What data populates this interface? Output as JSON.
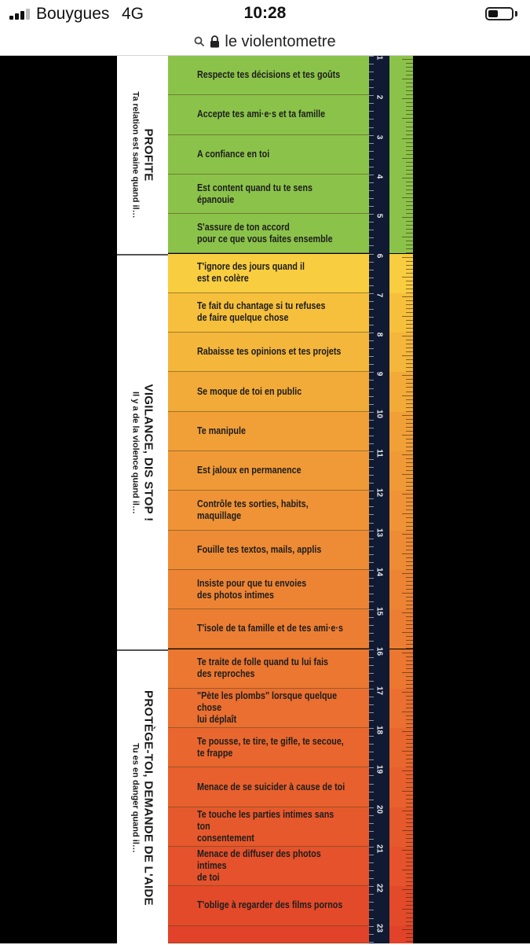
{
  "status_bar": {
    "carrier": "Bouygues",
    "network": "4G",
    "time": "10:28"
  },
  "url_bar": {
    "url": "le violentometre"
  },
  "violentometre": {
    "sections": [
      {
        "title": "PROFITE",
        "subtitle": "Ta relation est saine quand il…",
        "color": "#ffffff"
      },
      {
        "title": "VIGILANCE, DIS STOP !",
        "subtitle": "Il y a de la violence quand il…",
        "color": "#ffffff"
      },
      {
        "title": "PROTÈGE-TOI, DEMANDE DE L'AIDE",
        "subtitle": "Tu es en danger quand il…",
        "color": "#ffffff"
      }
    ],
    "items": [
      {
        "text": "Respecte tes décisions et tes goûts",
        "color": "#8bc34a"
      },
      {
        "text": "Accepte tes ami·e·s et ta famille",
        "color": "#8bc34a"
      },
      {
        "text": "A confiance en toi",
        "color": "#8bc34a"
      },
      {
        "text": "Est content quand tu te sens épanouie",
        "color": "#8bc34a"
      },
      {
        "text": "S'assure de ton accord\npour ce que vous faites ensemble",
        "color": "#8bc34a"
      },
      {
        "text": "T'ignore des jours quand il\nest en colère",
        "color": "#f8cd40"
      },
      {
        "text": "Te fait du chantage si tu refuses\nde faire quelque chose",
        "color": "#f6c03d"
      },
      {
        "text": "Rabaisse tes opinions et tes projets",
        "color": "#f4b63b"
      },
      {
        "text": "Se moque de toi en public",
        "color": "#f2ab39"
      },
      {
        "text": "Te manipule",
        "color": "#f1a038"
      },
      {
        "text": "Est jaloux en permanence",
        "color": "#f09a37"
      },
      {
        "text": "Contrôle tes sorties, habits, maquillage",
        "color": "#ef9336"
      },
      {
        "text": "Fouille tes textos, mails, applis",
        "color": "#ee8b35"
      },
      {
        "text": "Insiste pour que tu envoies\ndes photos intimes",
        "color": "#ed8434"
      },
      {
        "text": "T'isole de ta famille et de tes ami·e·s",
        "color": "#ec7e33"
      },
      {
        "text": "Te traite de folle quand tu lui fais\ndes reproches",
        "color": "#eb7731"
      },
      {
        "text": "\"Pète les plombs\" lorsque quelque chose\nlui déplaît",
        "color": "#ea6f30"
      },
      {
        "text": "Te pousse, te tire, te gifle, te secoue,\nte frappe",
        "color": "#e9672e"
      },
      {
        "text": "Menace de se suicider à cause de toi",
        "color": "#e8602d"
      },
      {
        "text": "Te touche les parties intimes sans ton\nconsentement",
        "color": "#e6592c"
      },
      {
        "text": "Menace de diffuser des photos intimes\nde toi",
        "color": "#e5522b"
      },
      {
        "text": "T'oblige à regarder des films pornos",
        "color": "#e34a2a"
      },
      {
        "text": "",
        "color": "#e14229"
      }
    ],
    "ruler_numbers": [
      "1",
      "2",
      "3",
      "4",
      "5",
      "6",
      "7",
      "8",
      "9",
      "10",
      "11",
      "12",
      "13",
      "14",
      "15",
      "16",
      "17",
      "18",
      "19",
      "20",
      "21",
      "22",
      "23"
    ]
  }
}
